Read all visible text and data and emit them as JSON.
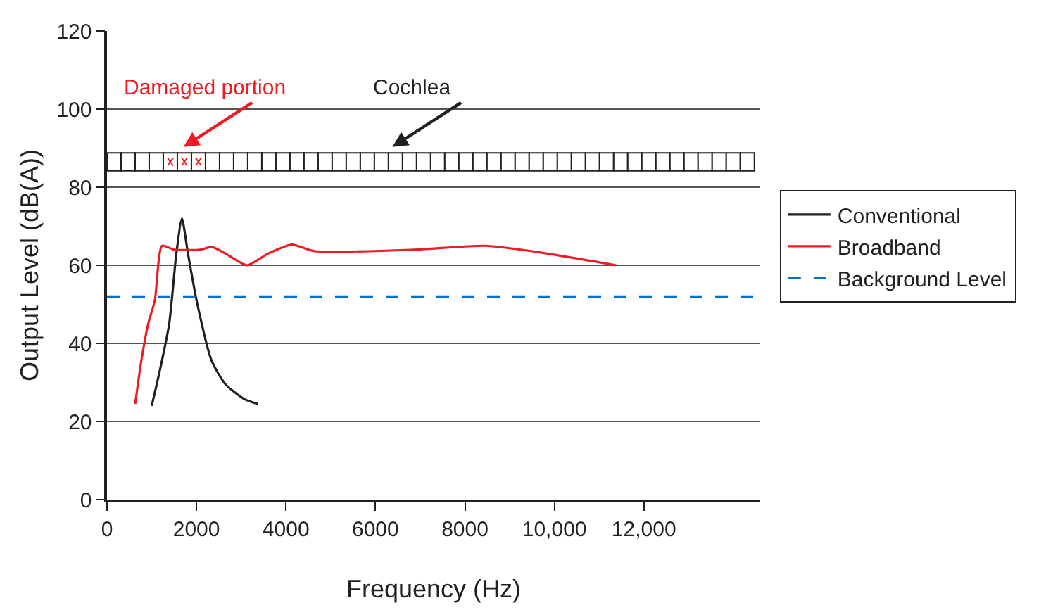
{
  "chart_data": {
    "type": "line",
    "xlabel": "Frequency (Hz)",
    "ylabel": "Output Level (dB(A))",
    "series": [
      {
        "name": "Conventional",
        "color": "#231f20",
        "x": [
          1000,
          1180,
          1390,
          1550,
          1675,
          1810,
          2020,
          2340,
          2650,
          3075,
          3370
        ],
        "values": [
          24,
          33,
          45,
          63,
          72,
          63,
          50,
          35.5,
          29.5,
          25.7,
          24.5
        ]
      },
      {
        "name": "Broadband",
        "color": "#ed1c24",
        "x": [
          630,
          760,
          920,
          1070,
          1230,
          1500,
          2080,
          2340,
          2650,
          3130,
          3600,
          4130,
          4650,
          6870,
          8450,
          9500,
          11380
        ],
        "values": [
          24.5,
          35,
          45,
          51,
          65,
          64,
          64,
          64.7,
          63,
          60,
          63,
          65.3,
          63.6,
          64,
          65,
          63.6,
          60
        ]
      },
      {
        "name": "Background Level",
        "color": "#0072ce",
        "line_style": "dashed",
        "x": [
          0,
          14600
        ],
        "values": [
          52,
          52
        ]
      }
    ],
    "xlim": [
      0,
      14600
    ],
    "xticks": [
      0,
      2000,
      4000,
      6000,
      8000,
      {
        "value": 10000,
        "label": "10,000"
      },
      {
        "value": 12000,
        "label": "12,000"
      }
    ],
    "ylim": [
      0,
      120
    ],
    "yticks": [
      0,
      20,
      40,
      60,
      80,
      100,
      120
    ],
    "grid": "y",
    "legend": "right",
    "annotations": [
      "Damaged portion",
      "Cochlea"
    ]
  }
}
